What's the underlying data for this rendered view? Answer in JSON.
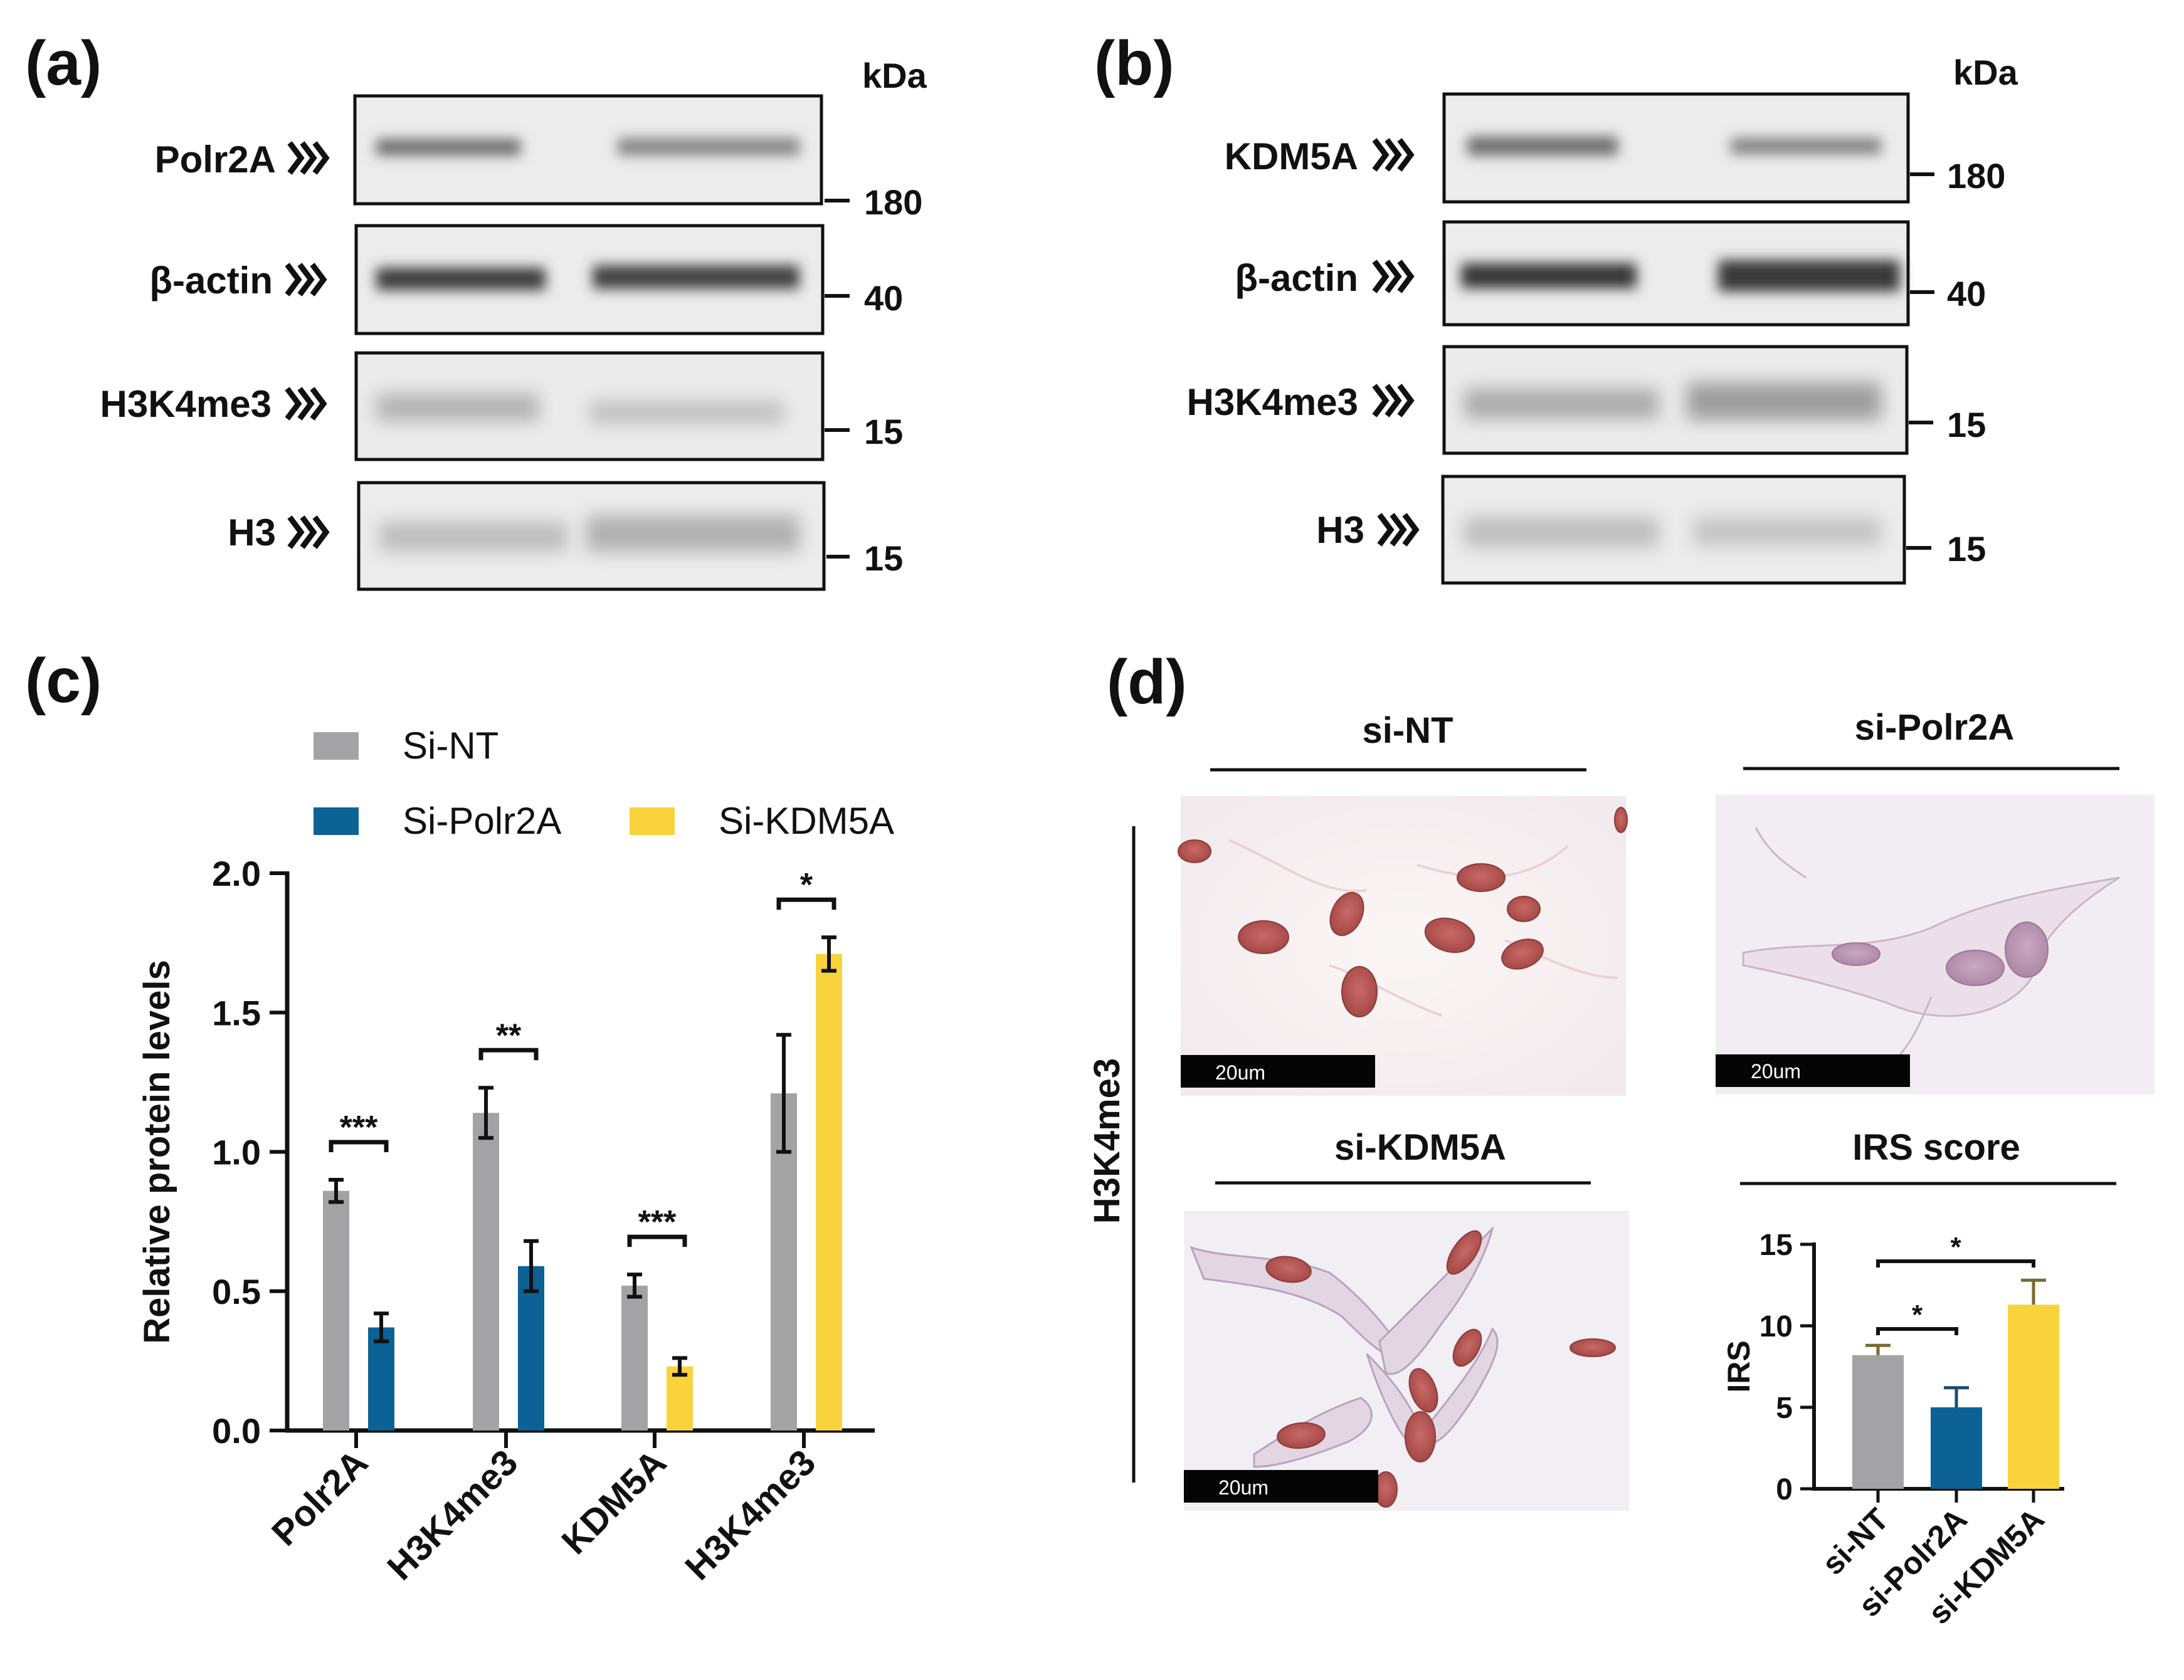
{
  "panels": {
    "a": {
      "letter": "(a)",
      "kda": "kDa",
      "rows": [
        {
          "label": "Polr2A",
          "marker": "180"
        },
        {
          "label": "β-actin",
          "marker": "40"
        },
        {
          "label": "H3K4me3",
          "marker": "15"
        },
        {
          "label": "H3",
          "marker": "15"
        }
      ]
    },
    "b": {
      "letter": "(b)",
      "kda": "kDa",
      "rows": [
        {
          "label": "KDM5A",
          "marker": "180"
        },
        {
          "label": "β-actin",
          "marker": "40"
        },
        {
          "label": "H3K4me3",
          "marker": "15"
        },
        {
          "label": "H3",
          "marker": "15"
        }
      ]
    },
    "c": {
      "letter": "(c)"
    },
    "d": {
      "letter": "(d)",
      "side_label": "H3K4me3",
      "images": [
        {
          "title": "si-NT",
          "scale_bar": "20um"
        },
        {
          "title": "si-Polr2A",
          "scale_bar": "20um"
        },
        {
          "title": "si-KDM5A",
          "scale_bar": "20um"
        }
      ],
      "irs_title": "IRS score"
    }
  },
  "colors": {
    "si_nt": "#a3a3a6",
    "si_polr2a": "#0c6294",
    "si_kdm5a": "#f9d33c",
    "text": "#111111"
  },
  "chart_data": [
    {
      "type": "bar",
      "title": "",
      "ylabel": "Relative protein levels",
      "xlabel": "",
      "ylim": [
        0,
        2.0
      ],
      "yticks": [
        "0.0",
        "0.5",
        "1.0",
        "1.5",
        "2.0"
      ],
      "legend": {
        "placement": "top",
        "entries": [
          "Si-NT",
          "Si-Polr2A",
          "Si-KDM5A"
        ]
      },
      "groups": [
        {
          "category": "Polr2A",
          "bars": [
            {
              "series": "Si-NT",
              "value": 0.86,
              "err": 0.04
            },
            {
              "series": "Si-Polr2A",
              "value": 0.37,
              "err": 0.05
            }
          ],
          "sig": "***"
        },
        {
          "category": "H3K4me3",
          "bars": [
            {
              "series": "Si-NT",
              "value": 1.14,
              "err": 0.09
            },
            {
              "series": "Si-Polr2A",
              "value": 0.59,
              "err": 0.09
            }
          ],
          "sig": "**"
        },
        {
          "category": "KDM5A",
          "bars": [
            {
              "series": "Si-NT",
              "value": 0.52,
              "err": 0.04
            },
            {
              "series": "Si-KDM5A",
              "value": 0.23,
              "err": 0.03
            }
          ],
          "sig": "***"
        },
        {
          "category": "H3K4me3",
          "bars": [
            {
              "series": "Si-NT",
              "value": 1.21,
              "err": 0.21
            },
            {
              "series": "Si-KDM5A",
              "value": 1.71,
              "err": 0.06
            }
          ],
          "sig": "*"
        }
      ]
    },
    {
      "type": "bar",
      "title": "IRS score",
      "ylabel": "IRS",
      "ylim": [
        0,
        15
      ],
      "yticks": [
        "0",
        "5",
        "10",
        "15"
      ],
      "categories": [
        "si-NT",
        "si-Polr2A",
        "si-KDM5A"
      ],
      "values": [
        8.2,
        5.0,
        11.3
      ],
      "errors": [
        0.6,
        1.2,
        1.5
      ],
      "significance": [
        {
          "from": "si-NT",
          "to": "si-Polr2A",
          "label": "*"
        },
        {
          "from": "si-NT",
          "to": "si-KDM5A",
          "label": "*"
        }
      ]
    }
  ]
}
